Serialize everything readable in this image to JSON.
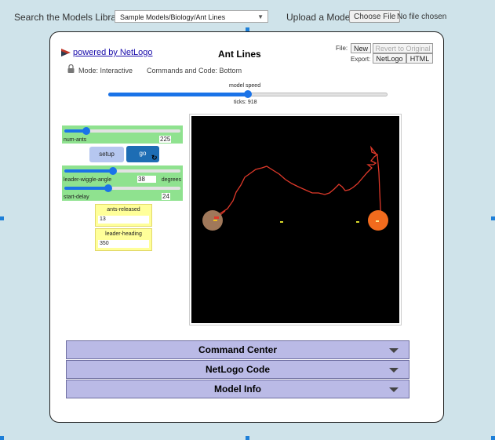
{
  "topbar": {
    "search_label": "Search the Models Library:",
    "model_select": "Sample Models/Biology/Ant Lines",
    "upload_label": "Upload a Model:",
    "choose_file": "Choose File",
    "no_file": "No file chosen"
  },
  "header": {
    "powered_by": "powered by NetLogo",
    "title": "Ant Lines",
    "file_label": "File:",
    "new_button": "New",
    "revert_button": "Revert to Original",
    "export_label": "Export:",
    "netlogo_button": "NetLogo",
    "html_button": "HTML"
  },
  "mode": {
    "mode_text": "Mode: Interactive",
    "commands_text": "Commands and Code: Bottom"
  },
  "speed": {
    "label": "model speed",
    "ticks": "ticks: 918",
    "level": 0.5
  },
  "widgets": {
    "num_ants": {
      "name": "num-ants",
      "value": "225",
      "fraction": 0.19
    },
    "setup": "setup",
    "go": "go",
    "forever_icon": "↻",
    "leader_wiggle": {
      "name": "leader-wiggle-angle",
      "value": "38",
      "unit": "degrees",
      "fraction": 0.42
    },
    "start_delay": {
      "name": "start-delay",
      "value": "24",
      "fraction": 0.38
    },
    "ants_released": {
      "name": "ants-released",
      "value": "13"
    },
    "leader_heading": {
      "name": "leader-heading",
      "value": "350"
    }
  },
  "view": {
    "background": "#000000",
    "nest_color": "#a0785a",
    "food_color": "#f26b1d",
    "trail_color": "#e0392a"
  },
  "panels": {
    "command_center": "Command Center",
    "netlogo_code": "NetLogo Code",
    "model_info": "Model Info"
  },
  "colors": {
    "slider_bg": "#8fe28f",
    "accent": "#1a73e8",
    "monitor_bg": "#ffff99",
    "panel_bg": "#babae6"
  }
}
